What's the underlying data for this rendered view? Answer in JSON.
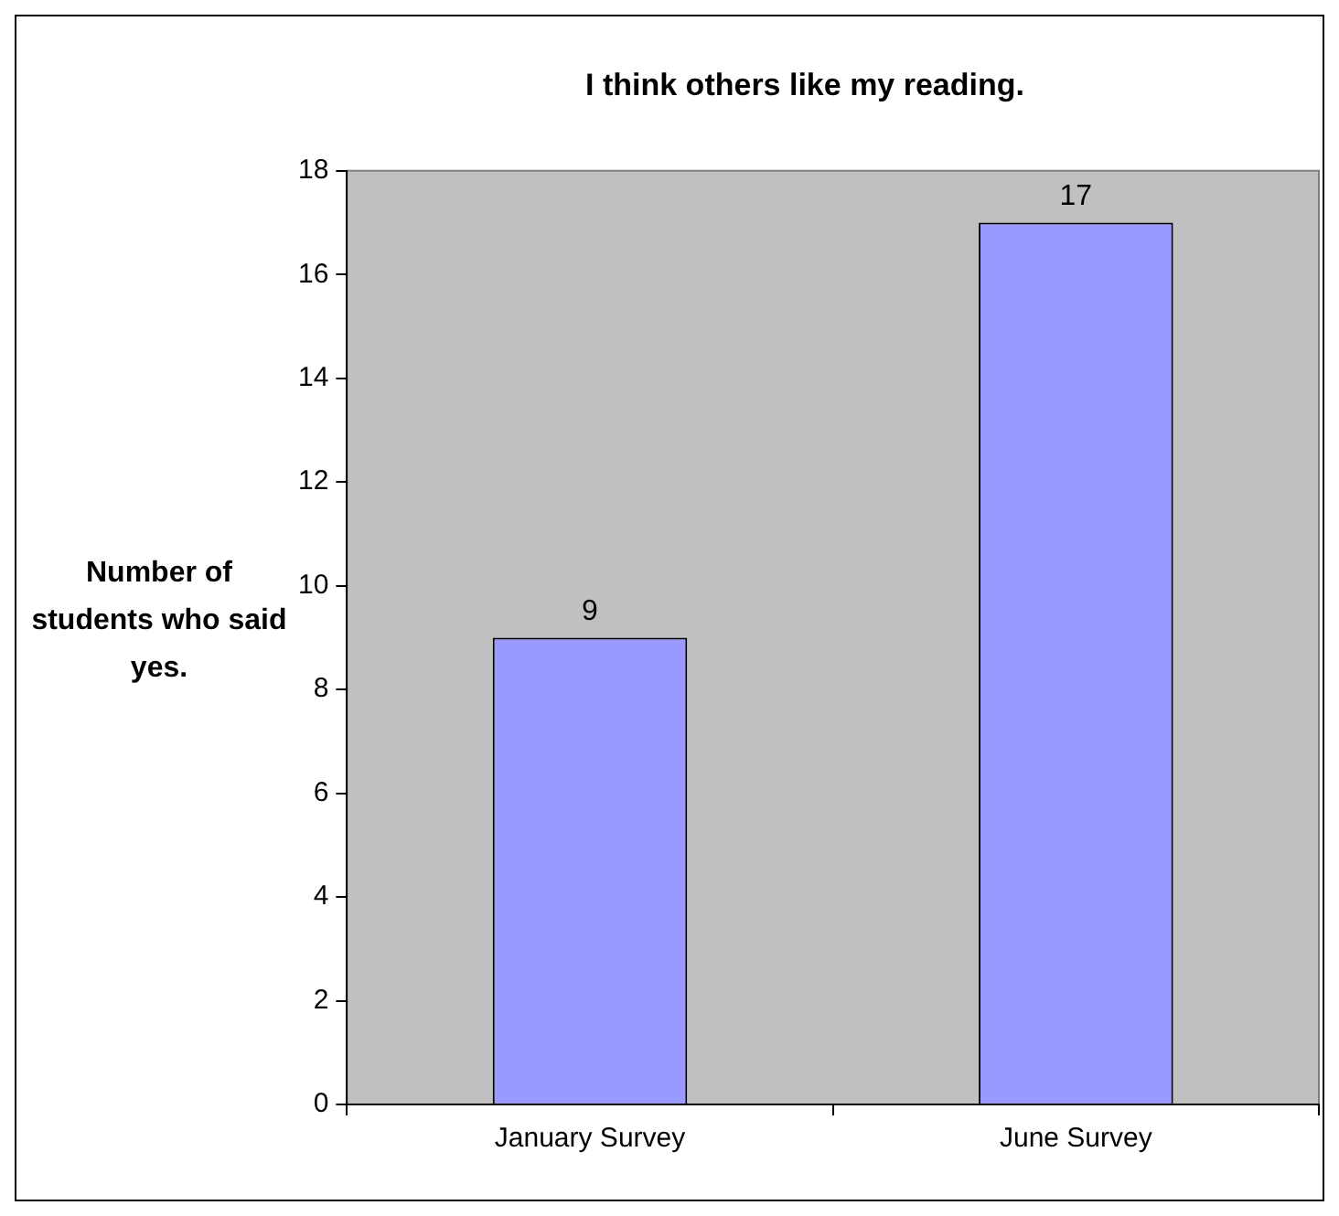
{
  "chart_data": {
    "type": "bar",
    "title": "I think others like my reading.",
    "ylabel": "Number of students who said yes.",
    "categories": [
      "January Survey",
      "June Survey"
    ],
    "values": [
      9,
      17
    ],
    "color": "#9999ff",
    "ylim": [
      0,
      18
    ],
    "yticks": [
      0,
      2,
      4,
      6,
      8,
      10,
      12,
      14,
      16,
      18
    ],
    "grid": false,
    "legend": false,
    "data_labels": true
  }
}
